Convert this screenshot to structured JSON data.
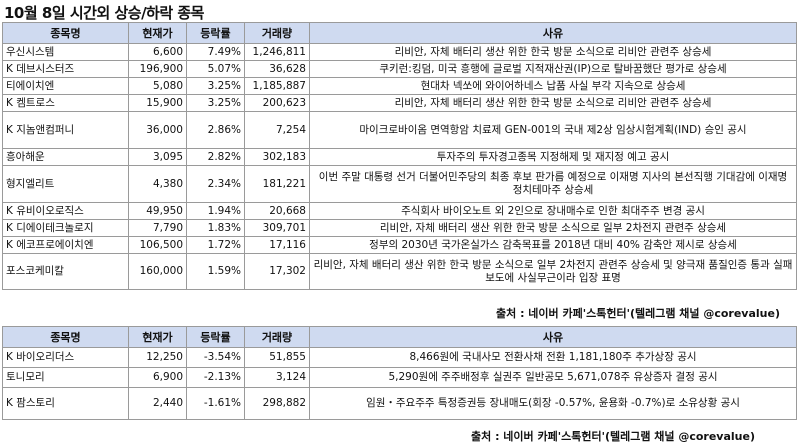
{
  "title": "10월 8일  시간외 상승/하락 종목",
  "headers": {
    "name": "종목명",
    "price": "현재가",
    "rate": "등락률",
    "volume": "거래량",
    "reason": "사유"
  },
  "rising": [
    {
      "name": "우신시스템",
      "price": "6,600",
      "rate": "7.49%",
      "volume": "1,246,811",
      "reason": "리비안, 자체 배터리 생산 위한 한국 방문 소식으로 리비안 관련주 상승세"
    },
    {
      "name": "K 데브시스터즈",
      "price": "196,900",
      "rate": "5.07%",
      "volume": "36,628",
      "reason": "쿠키런:킹덤, 미국 흥행에 글로벌 지적재산권(IP)으로 탈바꿈했단 평가로 상승세"
    },
    {
      "name": "티에이치엔",
      "price": "5,080",
      "rate": "3.25%",
      "volume": "1,185,887",
      "reason": "현대차 넥쏘에 와이어하네스 납품 사실 부각 지속으로 상승세"
    },
    {
      "name": "K 켐트로스",
      "price": "15,900",
      "rate": "3.25%",
      "volume": "200,623",
      "reason": "리비안, 자체 배터리 생산 위한 한국 방문 소식으로 리비안 관련주 상승세"
    },
    {
      "name": "K 지놈앤컴퍼니",
      "price": "36,000",
      "rate": "2.86%",
      "volume": "7,254",
      "reason": "마이크로바이옴 면역항암 치료제 GEN-001의 국내 제2상 임상시험계획(IND) 승인 공시"
    },
    {
      "name": "흥아해운",
      "price": "3,095",
      "rate": "2.82%",
      "volume": "302,183",
      "reason": "투자주의 투자경고종목 지정해제 및 재지정 예고 공시"
    },
    {
      "name": "형지엘리트",
      "price": "4,380",
      "rate": "2.34%",
      "volume": "181,221",
      "reason": "이번 주말 대통령 선거 더불어민주당의 최종 후보 판가름 예정으로 이재명 지사의 본선직행 기대감에 이재명 정치테마주 상승세"
    },
    {
      "name": "K 유비이오로직스",
      "price": "49,950",
      "rate": "1.94%",
      "volume": "20,668",
      "reason": "주식회사 바이오노트 외 2인으로 장내매수로 인한 최대주주 변경 공시"
    },
    {
      "name": "K 디에이테크놀로지",
      "price": "7,790",
      "rate": "1.83%",
      "volume": "309,701",
      "reason": "리비안, 자체 배터리 생산 위한 한국 방문 소식으로 일부 2차전지 관련주 상승세"
    },
    {
      "name": "K 에코프로에이치엔",
      "price": "106,500",
      "rate": "1.72%",
      "volume": "17,116",
      "reason": "정부의 2030년 국가온실가스 감축목표를 2018년 대비 40% 감축안 제시로 상승세"
    },
    {
      "name": "포스코케미칼",
      "price": "160,000",
      "rate": "1.59%",
      "volume": "17,302",
      "reason": "리비안, 자체 배터리 생산 위한 한국 방문 소식으로 일부 2차전지 관련주 상승세 및 양극재 품질인증 통과 실패 보도에 사실무근이라 입장 표명"
    }
  ],
  "falling": [
    {
      "name": "K 바이오리더스",
      "price": "12,250",
      "rate": "-3.54%",
      "volume": "51,855",
      "reason": "8,466원에 국내사모 전환사채 전환 1,181,180주 추가상장 공시"
    },
    {
      "name": "토니모리",
      "price": "6,900",
      "rate": "-2.13%",
      "volume": "3,124",
      "reason": "5,290원에 주주배정후 실권주 일반공모 5,671,078주 유상증자 결정 공시"
    },
    {
      "name": "K 팜스토리",
      "price": "2,440",
      "rate": "-1.61%",
      "volume": "298,882",
      "reason": "임원・주요주주 특정증권등 장내매도(회장 -0.57%, 윤용화 -0.7%)로 소유상황 공시"
    }
  ],
  "source": "출처 : 네이버 카페'스톡헌터'(텔레그램 채널 @corevalue)",
  "colors": {
    "header_bg": "#cfdaf0",
    "border": "#9a9a9a"
  }
}
